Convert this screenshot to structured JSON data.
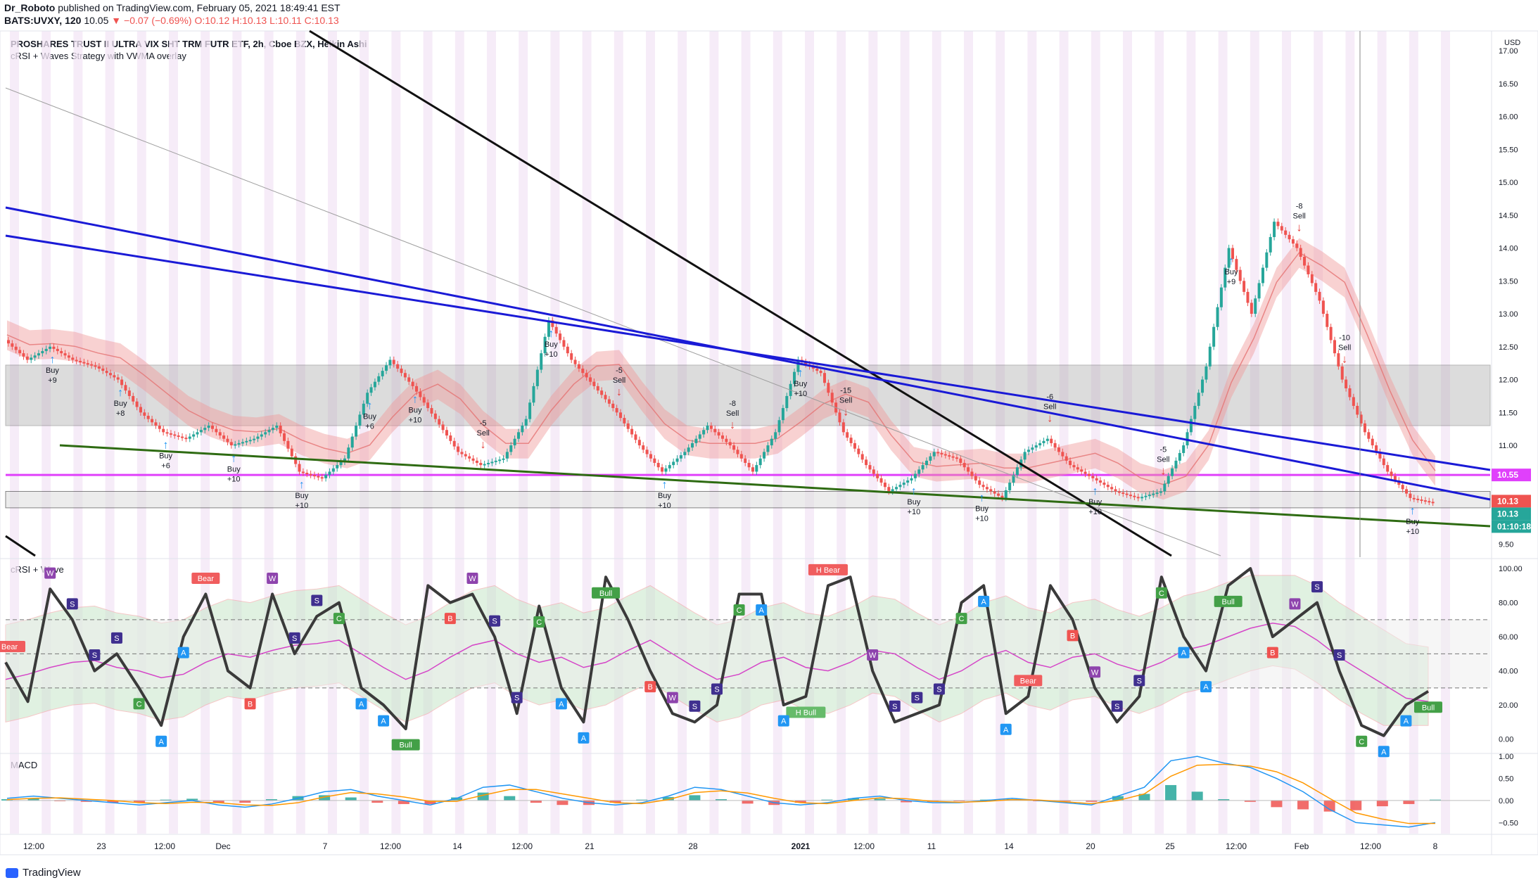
{
  "header": {
    "publisher": "Dr_Roboto",
    "published_text": "published on TradingView.com, February 05, 2021 18:49:41 EST",
    "symbol": "BATS:UVXY, 120",
    "last": "10.05",
    "change": "−0.07 (−0.69%)",
    "ohlc": "O:10.12 H:10.13 L:10.11 C:10.13"
  },
  "main_pane": {
    "title": "PROSHARES TRUST II ULTRA VIX SHT TRM FUTR ETF, 2h, Cboe BZX, Heikin Ashi",
    "indicator": "cRSI + Waves Strategy with VWMA overlay",
    "currency": "USD",
    "price_ticks": [
      "17.00",
      "16.50",
      "16.00",
      "15.50",
      "15.00",
      "14.50",
      "14.00",
      "13.50",
      "13.00",
      "12.50",
      "12.00",
      "11.50",
      "11.00",
      "10.50",
      "10.00",
      "9.50"
    ],
    "price_tags": [
      {
        "text": "10.55",
        "color": "#e040fb"
      },
      {
        "text": "10.13",
        "color": "#ef5350"
      },
      {
        "text": "10.13",
        "color": "#26a69a"
      },
      {
        "text": "01:10:18",
        "color": "#26a69a"
      }
    ],
    "signals": [
      {
        "type": "buy",
        "l1": "Buy",
        "l2": "+9"
      },
      {
        "type": "buy",
        "l1": "Buy",
        "l2": "+8"
      },
      {
        "type": "buy",
        "l1": "Buy",
        "l2": "+6"
      },
      {
        "type": "buy",
        "l1": "Buy",
        "l2": "+10"
      },
      {
        "type": "buy",
        "l1": "Buy",
        "l2": "+10"
      },
      {
        "type": "buy",
        "l1": "Buy",
        "l2": "+6"
      },
      {
        "type": "buy",
        "l1": "Buy",
        "l2": "+10"
      },
      {
        "type": "sell",
        "l1": "-5",
        "l2": "Sell"
      },
      {
        "type": "buy",
        "l1": "Buy",
        "l2": "+10"
      },
      {
        "type": "sell",
        "l1": "-5",
        "l2": "Sell"
      },
      {
        "type": "buy",
        "l1": "Buy",
        "l2": "+10"
      },
      {
        "type": "sell",
        "l1": "-8",
        "l2": "Sell"
      },
      {
        "type": "buy",
        "l1": "Buy",
        "l2": "+10"
      },
      {
        "type": "sell",
        "l1": "-15",
        "l2": "Sell"
      },
      {
        "type": "buy",
        "l1": "Buy",
        "l2": "+10"
      },
      {
        "type": "buy",
        "l1": "Buy",
        "l2": "+10"
      },
      {
        "type": "sell",
        "l1": "-6",
        "l2": "Sell"
      },
      {
        "type": "buy",
        "l1": "Buy",
        "l2": "+10"
      },
      {
        "type": "sell",
        "l1": "-5",
        "l2": "Sell"
      },
      {
        "type": "buy",
        "l1": "Buy",
        "l2": "+9"
      },
      {
        "type": "sell",
        "l1": "-8",
        "l2": "Sell"
      },
      {
        "type": "sell",
        "l1": "-10",
        "l2": "Sell"
      },
      {
        "type": "buy",
        "l1": "Buy",
        "l2": "+10"
      }
    ]
  },
  "crsi_pane": {
    "title": "cRSI + Wave",
    "ticks": [
      "100.00",
      "80.00",
      "60.00",
      "40.00",
      "20.00",
      "0.00"
    ],
    "labels": [
      {
        "text": "H Bear",
        "style": "bear"
      },
      {
        "text": "H Bear",
        "style": "bear"
      },
      {
        "text": "Bear",
        "style": "bear"
      },
      {
        "text": "Bear",
        "style": "bear"
      },
      {
        "text": "Bull",
        "style": "bull"
      },
      {
        "text": "Bull",
        "style": "bull"
      },
      {
        "text": "Bull",
        "style": "bull"
      },
      {
        "text": "Bull",
        "style": "bull"
      },
      {
        "text": "H Bull",
        "style": "hbull"
      },
      {
        "text": "A",
        "style": "a"
      },
      {
        "text": "A",
        "style": "a"
      },
      {
        "text": "A",
        "style": "a"
      },
      {
        "text": "A",
        "style": "a"
      },
      {
        "text": "A",
        "style": "a"
      },
      {
        "text": "A",
        "style": "a"
      },
      {
        "text": "A",
        "style": "a"
      },
      {
        "text": "A",
        "style": "a"
      },
      {
        "text": "A",
        "style": "a"
      },
      {
        "text": "A",
        "style": "a"
      },
      {
        "text": "A",
        "style": "a"
      },
      {
        "text": "A",
        "style": "a"
      },
      {
        "text": "A",
        "style": "a"
      },
      {
        "text": "A",
        "style": "a"
      },
      {
        "text": "C",
        "style": "c"
      },
      {
        "text": "C",
        "style": "c"
      },
      {
        "text": "C",
        "style": "c"
      },
      {
        "text": "C",
        "style": "c"
      },
      {
        "text": "C",
        "style": "c"
      },
      {
        "text": "C",
        "style": "c"
      },
      {
        "text": "C",
        "style": "c"
      },
      {
        "text": "S",
        "style": "s"
      },
      {
        "text": "S",
        "style": "s"
      },
      {
        "text": "S",
        "style": "s"
      },
      {
        "text": "S",
        "style": "s"
      },
      {
        "text": "S",
        "style": "s"
      },
      {
        "text": "S",
        "style": "s"
      },
      {
        "text": "S",
        "style": "s"
      },
      {
        "text": "S",
        "style": "s"
      },
      {
        "text": "S",
        "style": "s"
      },
      {
        "text": "S",
        "style": "s"
      },
      {
        "text": "S",
        "style": "s"
      },
      {
        "text": "S",
        "style": "s"
      },
      {
        "text": "S",
        "style": "s"
      },
      {
        "text": "S",
        "style": "s"
      },
      {
        "text": "S",
        "style": "s"
      },
      {
        "text": "S",
        "style": "s"
      },
      {
        "text": "W",
        "style": "w"
      },
      {
        "text": "W",
        "style": "w"
      },
      {
        "text": "W",
        "style": "w"
      },
      {
        "text": "W",
        "style": "w"
      },
      {
        "text": "W",
        "style": "w"
      },
      {
        "text": "W",
        "style": "w"
      },
      {
        "text": "W",
        "style": "w"
      },
      {
        "text": "B",
        "style": "b"
      },
      {
        "text": "B",
        "style": "b"
      },
      {
        "text": "B",
        "style": "b"
      },
      {
        "text": "B",
        "style": "b"
      },
      {
        "text": "B",
        "style": "b"
      }
    ]
  },
  "macd_pane": {
    "title": "MACD",
    "ticks": [
      "1.00",
      "0.50",
      "0.00",
      "−0.50"
    ]
  },
  "x_axis": {
    "ticks": [
      "12:00",
      "23",
      "12:00",
      "Dec",
      "7",
      "12:00",
      "14",
      "12:00",
      "21",
      "28",
      "2021",
      "12:00",
      "11",
      "14",
      "20",
      "25",
      "12:00",
      "Feb",
      "12:00",
      "8"
    ]
  },
  "footer": {
    "brand": "TradingView"
  },
  "chart_data": [
    {
      "type": "candlestick",
      "title": "PROSHARES TRUST II ULTRA VIX SHT TRM FUTR ETF, 2h, Cboe BZX, Heikin Ashi",
      "y_axis": "USD",
      "ylim": [
        9.3,
        17.3
      ],
      "x_categories": [
        "12:00",
        "23",
        "12:00",
        "Dec",
        "7",
        "12:00",
        "14",
        "12:00",
        "21",
        "28",
        "2021",
        "12:00",
        "11",
        "14",
        "20",
        "25",
        "12:00",
        "Feb",
        "12:00",
        "8"
      ],
      "price_trace": [
        12.6,
        12.3,
        12.5,
        12.3,
        12.2,
        12.0,
        11.5,
        11.2,
        11.1,
        11.3,
        11.0,
        11.1,
        11.3,
        10.6,
        10.5,
        10.8,
        11.8,
        12.3,
        11.9,
        11.4,
        10.9,
        10.7,
        10.8,
        11.4,
        12.9,
        12.3,
        11.9,
        11.5,
        11.0,
        10.6,
        10.9,
        11.3,
        11.0,
        10.6,
        11.2,
        12.3,
        12.1,
        11.2,
        10.7,
        10.3,
        10.5,
        10.9,
        10.8,
        10.4,
        10.2,
        10.9,
        11.1,
        10.7,
        10.5,
        10.3,
        10.2,
        10.3,
        11.0,
        12.2,
        14.0,
        13.0,
        14.4,
        14.0,
        13.2,
        12.0,
        11.2,
        10.6,
        10.2,
        10.13
      ],
      "horizontal_levels": {
        "magenta": 10.55,
        "gray_zone": [
          11.3,
          12.22
        ],
        "support_zone": [
          10.05,
          10.3
        ]
      },
      "sell_signals": [
        -5,
        -5,
        -8,
        -15,
        -6,
        -5,
        -8,
        -10
      ],
      "buy_signals": [
        9,
        8,
        6,
        10,
        10,
        6,
        10,
        10,
        10,
        10,
        10,
        10,
        10,
        10,
        9,
        10
      ],
      "last_close": 10.13
    },
    {
      "type": "line",
      "title": "cRSI + Wave",
      "ylim": [
        -8,
        105
      ],
      "levels": [
        70,
        50,
        30
      ],
      "crsi": [
        45,
        22,
        88,
        70,
        40,
        50,
        30,
        8,
        60,
        85,
        40,
        30,
        85,
        50,
        72,
        80,
        30,
        20,
        6,
        90,
        80,
        85,
        60,
        15,
        78,
        30,
        10,
        95,
        70,
        40,
        15,
        10,
        20,
        85,
        85,
        20,
        25,
        90,
        95,
        40,
        10,
        15,
        20,
        80,
        90,
        15,
        25,
        90,
        70,
        30,
        10,
        25,
        95,
        60,
        40,
        90,
        100,
        60,
        70,
        80,
        40,
        8,
        2,
        20,
        28
      ],
      "signal": [
        35,
        38,
        42,
        45,
        46,
        42,
        40,
        36,
        38,
        45,
        50,
        48,
        52,
        55,
        56,
        58,
        50,
        42,
        35,
        40,
        48,
        55,
        58,
        50,
        45,
        48,
        42,
        45,
        52,
        58,
        50,
        42,
        35,
        38,
        45,
        48,
        42,
        40,
        45,
        52,
        50,
        42,
        35,
        40,
        48,
        52,
        45,
        42,
        48,
        50,
        44,
        40,
        45,
        52,
        55,
        60,
        65,
        68,
        66,
        58,
        48,
        40,
        32,
        24,
        22
      ]
    },
    {
      "type": "bar",
      "title": "MACD",
      "ylim": [
        -0.75,
        1.05
      ],
      "macd": [
        0.05,
        0.1,
        0.05,
        0.0,
        -0.05,
        -0.1,
        -0.05,
        0.0,
        -0.1,
        -0.15,
        -0.08,
        0.05,
        0.2,
        0.25,
        0.1,
        0.0,
        -0.1,
        0.05,
        0.3,
        0.35,
        0.2,
        0.05,
        -0.05,
        -0.1,
        -0.05,
        0.1,
        0.3,
        0.25,
        0.1,
        -0.05,
        -0.1,
        -0.05,
        0.05,
        0.1,
        0.0,
        -0.05,
        -0.05,
        0.0,
        0.05,
        0.0,
        -0.05,
        -0.1,
        0.1,
        0.3,
        0.9,
        1.0,
        0.85,
        0.75,
        0.5,
        0.2,
        -0.2,
        -0.5,
        -0.55,
        -0.6,
        -0.5
      ],
      "signal": [
        0.02,
        0.05,
        0.06,
        0.03,
        0.0,
        -0.05,
        -0.07,
        -0.04,
        -0.05,
        -0.1,
        -0.11,
        -0.05,
        0.08,
        0.18,
        0.15,
        0.08,
        -0.02,
        -0.02,
        0.12,
        0.25,
        0.25,
        0.15,
        0.05,
        -0.05,
        -0.07,
        0.02,
        0.18,
        0.22,
        0.17,
        0.05,
        -0.05,
        -0.07,
        0.0,
        0.06,
        0.04,
        -0.02,
        -0.04,
        -0.02,
        0.02,
        0.01,
        -0.03,
        -0.07,
        0.0,
        0.15,
        0.55,
        0.8,
        0.82,
        0.78,
        0.65,
        0.4,
        0.05,
        -0.28,
        -0.42,
        -0.52,
        -0.52
      ]
    }
  ]
}
